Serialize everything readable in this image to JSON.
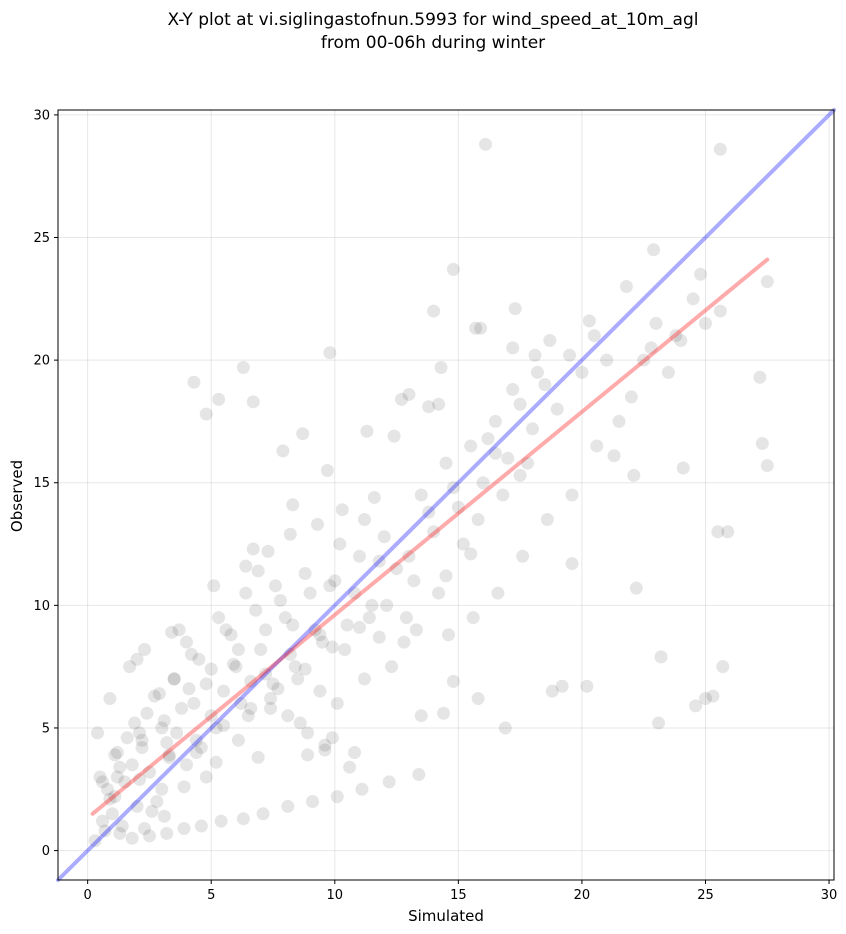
{
  "chart_data": {
    "type": "scatter",
    "title": "X-Y plot at vi.siglingastofnun.5993 for wind_speed_at_10m_agl",
    "subtitle": "from 00-06h during winter",
    "xlabel": "Simulated",
    "ylabel": "Observed",
    "xlim": [
      -1.2,
      30.2
    ],
    "ylim": [
      -1.2,
      30.2
    ],
    "xticks": [
      0,
      5,
      10,
      15,
      20,
      25,
      30
    ],
    "yticks": [
      0,
      5,
      10,
      15,
      20,
      25,
      30
    ],
    "grid": true,
    "marker_color": "#000000",
    "marker_alpha": 0.1,
    "identity_line": {
      "color": "#0000ff",
      "alpha": 0.33,
      "x": [
        -1.2,
        30.2
      ],
      "y": [
        -1.2,
        30.2
      ]
    },
    "fit_line": {
      "color": "#ff0000",
      "alpha": 0.33,
      "x": [
        0.2,
        27.5
      ],
      "y": [
        1.5,
        24.1
      ]
    },
    "points": {
      "x": [
        0.5,
        0.8,
        1.0,
        1.2,
        1.5,
        1.8,
        2.0,
        2.2,
        2.5,
        2.8,
        3.0,
        3.3,
        3.6,
        4.0,
        4.3,
        4.6,
        5.0,
        0.7,
        1.1,
        1.4,
        1.9,
        2.3,
        2.7,
        3.1,
        3.5,
        3.9,
        4.4,
        4.8,
        5.2,
        0.4,
        0.9,
        1.3,
        1.7,
        2.1,
        2.6,
        3.2,
        3.8,
        4.2,
        5.5,
        6.0,
        6.5,
        7.0,
        7.5,
        8.0,
        8.5,
        9.0,
        9.5,
        10.0,
        10.5,
        11.0,
        11.5,
        12.0,
        12.5,
        4.5,
        5.8,
        6.2,
        6.8,
        7.2,
        7.8,
        8.2,
        8.8,
        9.2,
        9.8,
        10.2,
        10.8,
        11.2,
        11.8,
        5.2,
        5.6,
        6.4,
        7.4,
        8.4,
        9.4,
        10.4,
        11.4,
        3.0,
        3.5,
        4.0,
        4.8,
        5.3,
        6.1,
        6.9,
        7.6,
        8.6,
        9.6,
        2.0,
        2.4,
        2.9,
        3.4,
        1.6,
        13.0,
        13.5,
        14.0,
        14.5,
        15.0,
        15.5,
        16.0,
        16.5,
        17.0,
        17.5,
        18.0,
        18.5,
        19.0,
        19.5,
        20.0,
        20.5,
        21.0,
        13.2,
        13.8,
        14.2,
        14.8,
        15.2,
        15.8,
        16.2,
        16.8,
        17.2,
        17.8,
        18.2,
        12.8,
        13.3,
        14.6,
        15.6,
        16.6,
        17.6,
        18.6,
        19.6,
        20.6,
        21.5,
        22.0,
        22.5,
        23.0,
        23.5,
        24.0,
        24.5,
        25.0,
        21.8,
        22.8,
        23.8,
        24.8,
        25.6,
        27.2,
        27.5,
        22.9,
        25.6,
        16.1,
        14.0,
        14.8,
        15.9,
        4.3,
        4.8,
        5.3,
        6.7,
        9.8,
        6.3,
        8.7,
        12.4,
        14.2,
        13.0,
        13.8,
        17.2,
        18.1,
        16.5,
        17.5,
        15.5,
        14.5,
        12.9,
        11.8,
        10.8,
        9.9,
        8.9,
        7.9,
        6.9,
        19.2,
        19.6,
        20.2,
        21.3,
        22.2,
        23.1,
        24.6,
        25.0,
        25.3,
        25.7,
        25.9,
        22.1,
        24.1,
        27.3,
        27.5,
        25.5,
        23.2,
        18.8,
        16.9,
        15.8,
        14.4,
        14.8,
        13.5,
        12.3,
        11.2,
        10.1,
        9.4,
        8.3,
        7.2,
        6.1,
        5.0,
        4.1,
        3.1,
        2.1,
        1.1,
        0.6,
        1.3,
        2.2,
        3.3,
        4.4,
        5.5,
        6.6,
        7.7,
        8.8,
        9.9,
        11.0,
        12.1,
        0.3,
        0.6,
        0.9,
        1.2,
        1.8,
        2.5,
        3.2,
        3.9,
        4.6,
        5.4,
        6.3,
        7.1,
        8.1,
        9.1,
        10.1,
        11.1,
        12.2,
        13.4,
        2.3,
        3.7,
        5.1,
        6.7,
        8.3,
        9.7,
        11.3,
        12.7,
        14.3,
        15.7,
        17.3,
        18.7,
        20.3,
        6.4,
        7.3,
        8.2,
        9.3,
        10.3,
        11.6,
        5.9,
        6.6,
        7.4,
        8.1,
        8.9,
        9.6,
        10.6
      ],
      "y": [
        3.0,
        2.5,
        1.5,
        4.0,
        2.8,
        3.5,
        1.8,
        4.5,
        3.2,
        2.0,
        5.0,
        3.8,
        4.8,
        3.5,
        6.0,
        4.2,
        5.5,
        0.8,
        2.2,
        1.0,
        5.2,
        0.9,
        6.3,
        1.4,
        7.0,
        2.6,
        4.0,
        6.8,
        3.6,
        4.8,
        6.2,
        0.7,
        7.5,
        2.9,
        1.6,
        4.4,
        5.8,
        8.0,
        6.5,
        7.5,
        5.5,
        8.2,
        6.8,
        9.5,
        7.0,
        10.5,
        8.5,
        11.0,
        9.2,
        12.0,
        10.0,
        12.8,
        11.5,
        7.8,
        8.8,
        6.0,
        9.8,
        7.2,
        10.2,
        8.0,
        11.3,
        9.0,
        10.8,
        12.5,
        10.5,
        13.5,
        11.8,
        5.0,
        9.0,
        10.5,
        5.8,
        7.5,
        6.5,
        8.2,
        9.5,
        2.5,
        7.0,
        8.5,
        3.0,
        9.5,
        4.5,
        3.8,
        10.8,
        5.2,
        4.3,
        7.8,
        5.6,
        6.4,
        8.9,
        4.6,
        12.0,
        14.5,
        13.0,
        15.8,
        14.0,
        16.5,
        15.0,
        17.5,
        16.0,
        18.2,
        17.2,
        19.0,
        18.0,
        20.2,
        19.5,
        21.0,
        20.0,
        11.0,
        13.8,
        10.5,
        14.8,
        12.5,
        13.5,
        16.8,
        14.5,
        18.8,
        15.8,
        19.5,
        8.5,
        9.0,
        8.8,
        9.5,
        10.5,
        12.0,
        13.5,
        14.5,
        16.5,
        17.5,
        18.5,
        20.0,
        21.5,
        19.5,
        20.8,
        22.5,
        21.5,
        23.0,
        20.5,
        21.0,
        23.5,
        22.0,
        19.3,
        23.2,
        24.5,
        28.6,
        28.8,
        22.0,
        23.7,
        21.3,
        19.1,
        17.8,
        18.4,
        18.3,
        20.3,
        19.7,
        17.0,
        16.9,
        18.2,
        18.6,
        18.1,
        20.5,
        20.2,
        16.2,
        15.3,
        12.1,
        11.2,
        9.5,
        8.7,
        4.0,
        4.6,
        3.9,
        16.3,
        11.4,
        6.7,
        11.7,
        6.7,
        16.1,
        10.7,
        5.2,
        5.9,
        6.2,
        6.3,
        7.5,
        13.0,
        15.3,
        15.6,
        16.6,
        15.7,
        13.0,
        7.9,
        6.5,
        5.0,
        6.2,
        5.6,
        6.9,
        5.5,
        7.5,
        7.0,
        6.0,
        8.8,
        9.2,
        9.0,
        8.2,
        7.4,
        6.6,
        5.3,
        4.8,
        3.9,
        2.8,
        3.4,
        4.2,
        3.9,
        4.5,
        5.1,
        5.8,
        6.6,
        7.4,
        8.3,
        9.1,
        10.0,
        0.4,
        1.2,
        2.1,
        3.0,
        0.5,
        0.6,
        0.7,
        0.9,
        1.0,
        1.2,
        1.3,
        1.5,
        1.8,
        2.0,
        2.2,
        2.5,
        2.8,
        3.1,
        8.2,
        9.0,
        10.8,
        12.3,
        14.1,
        15.5,
        17.1,
        18.4,
        19.7,
        21.3,
        22.1,
        20.8,
        21.6,
        11.6,
        12.2,
        12.9,
        13.3,
        13.9,
        14.4,
        7.6,
        6.9,
        6.2,
        5.5,
        4.8,
        4.1,
        3.4
      ]
    }
  }
}
